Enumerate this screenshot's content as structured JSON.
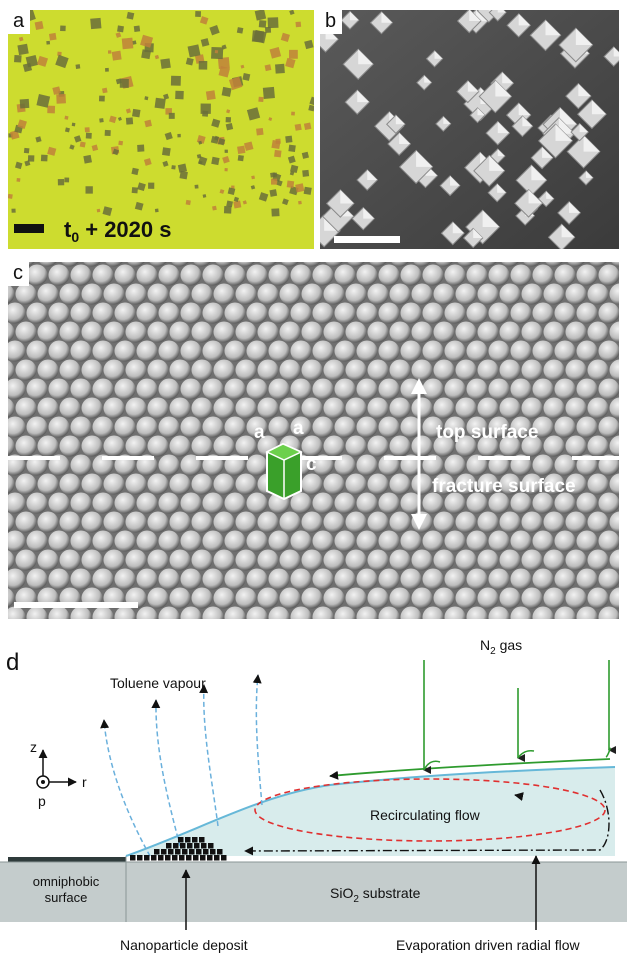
{
  "figure": {
    "panel_a": {
      "label": "a",
      "time_main": "t",
      "time_sub": "0",
      "time_rest": " + 2020 s",
      "colors": {
        "background": "#cddc2f",
        "crystal": "#6a6e3a",
        "particle": "#c0813a"
      }
    },
    "panel_b": {
      "label": "b",
      "colors": {
        "background": "#4d4d4d",
        "crystal": "#d2d2d2"
      }
    },
    "panel_c": {
      "label": "c",
      "top_surface": "top surface",
      "fracture_surface": "fracture surface",
      "axis_a1": "a",
      "axis_a2": "a",
      "axis_c": "c",
      "colors": {
        "background": "#7d7d7d",
        "sphere": "#d9d9d9",
        "unit_cell": "#3aa02a"
      }
    },
    "panel_d": {
      "label": "d",
      "toluene": "Toluene vapour",
      "n2_main": "N",
      "n2_sub": "2",
      "n2_rest": " gas",
      "axis_z": "z",
      "axis_r": "r",
      "axis_p": "p",
      "recirculating": "Recirculating flow",
      "omniphobic_line1": "omniphobic",
      "omniphobic_line2": "surface",
      "substrate_main": "SiO",
      "substrate_sub": "2",
      "substrate_rest": " substrate",
      "nanoparticle": "Nanoparticle deposit",
      "evaporation": "Evaporation driven radial flow",
      "colors": {
        "droplet": "#d8ecec",
        "droplet_edge": "#66b8d8",
        "substrate": "#c4cccc",
        "gas_arrow": "#2e9b2e",
        "vapour_arrow": "#6ab0dc",
        "recirculation": "#e03030"
      }
    }
  }
}
